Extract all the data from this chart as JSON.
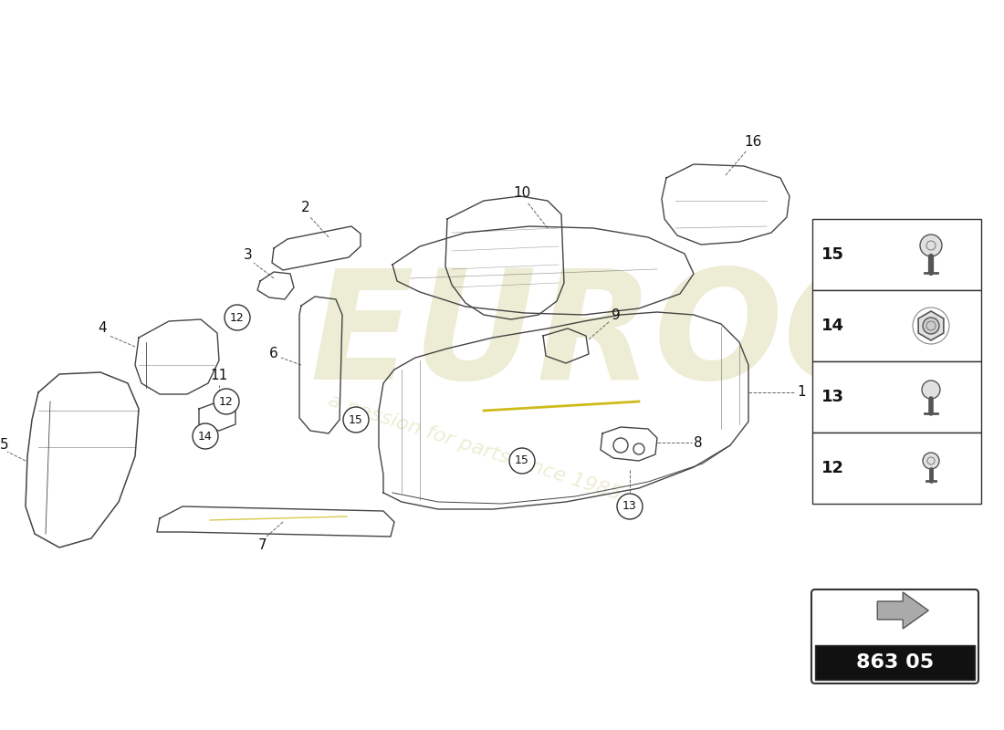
{
  "bg_color": "#ffffff",
  "watermark_color": "#cccc88",
  "watermark_alpha": 0.35,
  "part_number": "863 05",
  "legend_items": [
    {
      "id": 15,
      "type": "screw_tall"
    },
    {
      "id": 14,
      "type": "nut_flanged"
    },
    {
      "id": 13,
      "type": "screw_flat"
    },
    {
      "id": 12,
      "type": "screw_small"
    }
  ]
}
